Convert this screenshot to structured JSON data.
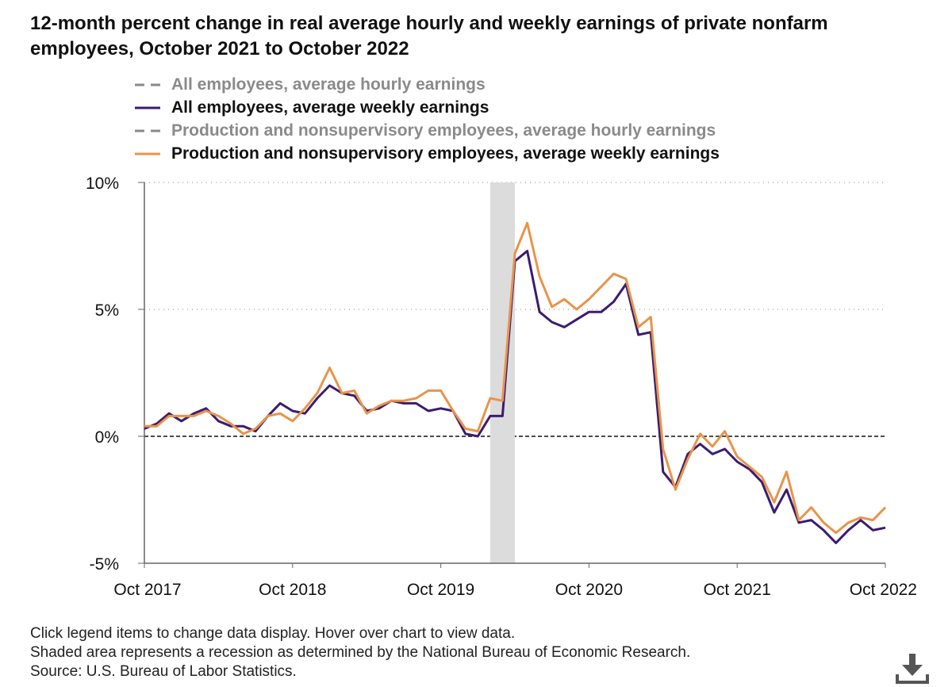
{
  "title": "12-month percent change in real average hourly and weekly earnings of private nonfarm employees, October 2021 to October 2022",
  "legend": [
    {
      "label": "All employees, average hourly earnings",
      "color": "#8a8a8a",
      "style": "dashed",
      "muted": true
    },
    {
      "label": "All employees, average weekly earnings",
      "color": "#3b1c6e",
      "style": "solid",
      "muted": false
    },
    {
      "label": "Production and nonsupervisory employees, average hourly earnings",
      "color": "#8a8a8a",
      "style": "dashed",
      "muted": true
    },
    {
      "label": "Production and nonsupervisory employees, average weekly earnings",
      "color": "#e8944a",
      "style": "solid",
      "muted": false
    }
  ],
  "notes": [
    "Click legend items to change data display. Hover over chart to view data.",
    "Shaded area represents a recession as determined by the National Bureau of Economic Research.",
    "Source: U.S. Bureau of Labor Statistics."
  ],
  "download_icon": "download-icon",
  "chart_data": {
    "type": "line",
    "title": "12-month percent change in real average hourly and weekly earnings of private nonfarm employees, October 2021 to October 2022",
    "xlabel": "",
    "ylabel": "",
    "x_start": "Oct 2017",
    "x_end": "Oct 2022",
    "x_ticks": [
      "Oct 2017",
      "Oct 2018",
      "Oct 2019",
      "Oct 2020",
      "Oct 2021",
      "Oct 2022"
    ],
    "y_ticks": [
      {
        "value": 10,
        "label": "10%"
      },
      {
        "value": 5,
        "label": "5%"
      },
      {
        "value": 0,
        "label": "0%"
      },
      {
        "value": -5,
        "label": "-5%"
      }
    ],
    "ylim": [
      -5,
      10
    ],
    "n_points": 61,
    "recession": {
      "start_index": 28,
      "end_index": 30
    },
    "zero_line": true,
    "series": [
      {
        "name": "All employees, average weekly earnings",
        "color": "#3b1c6e",
        "values": [
          0.3,
          0.5,
          0.9,
          0.6,
          0.9,
          1.1,
          0.6,
          0.4,
          0.4,
          0.2,
          0.8,
          1.3,
          1.0,
          0.9,
          1.5,
          2.0,
          1.7,
          1.6,
          1.0,
          1.1,
          1.4,
          1.3,
          1.3,
          1.0,
          1.1,
          1.0,
          0.1,
          0.0,
          0.8,
          0.8,
          6.9,
          7.3,
          4.9,
          4.5,
          4.3,
          4.6,
          4.9,
          4.9,
          5.3,
          6.0,
          4.0,
          4.1,
          -1.4,
          -2.0,
          -0.7,
          -0.3,
          -0.7,
          -0.5,
          -1.0,
          -1.3,
          -1.8,
          -3.0,
          -2.1,
          -3.4,
          -3.3,
          -3.7,
          -4.2,
          -3.7,
          -3.3,
          -3.7,
          -3.6
        ]
      },
      {
        "name": "Production and nonsupervisory employees, average weekly earnings",
        "color": "#e8944a",
        "values": [
          0.4,
          0.4,
          0.8,
          0.8,
          0.8,
          1.0,
          0.8,
          0.5,
          0.1,
          0.3,
          0.8,
          0.9,
          0.6,
          1.1,
          1.7,
          2.7,
          1.7,
          1.8,
          0.9,
          1.2,
          1.4,
          1.4,
          1.5,
          1.8,
          1.8,
          1.0,
          0.3,
          0.2,
          1.5,
          1.4,
          7.2,
          8.4,
          6.3,
          5.1,
          5.4,
          5.0,
          5.4,
          5.9,
          6.4,
          6.2,
          4.3,
          4.7,
          -0.5,
          -2.1,
          -0.9,
          0.1,
          -0.4,
          0.2,
          -0.8,
          -1.2,
          -1.6,
          -2.6,
          -1.4,
          -3.3,
          -2.8,
          -3.4,
          -3.8,
          -3.4,
          -3.2,
          -3.3,
          -2.8
        ]
      }
    ]
  }
}
